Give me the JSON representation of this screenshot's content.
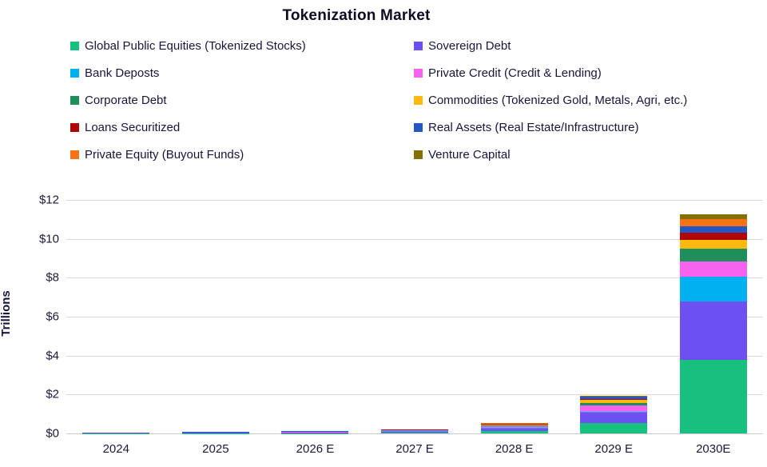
{
  "chart_data": {
    "type": "bar",
    "stacked": true,
    "title": "Tokenization Market",
    "ylabel": "Trillions",
    "grid": true,
    "legend_position": "top",
    "ylim": [
      0,
      12
    ],
    "y_ticks": [
      "$0",
      "$2",
      "$4",
      "$6",
      "$8",
      "$10",
      "$12"
    ],
    "categories": [
      "2024",
      "2025",
      "2026 E",
      "2027 E",
      "2028 E",
      "2029 E",
      "2030E"
    ],
    "series": [
      {
        "name": "Global Public Equities (Tokenized Stocks)",
        "color": "#17c07e",
        "values": [
          0.01,
          0.015,
          0.02,
          0.04,
          0.12,
          0.55,
          3.8
        ]
      },
      {
        "name": "Sovereign Debt",
        "color": "#6e4ff0",
        "values": [
          0.012,
          0.018,
          0.03,
          0.06,
          0.13,
          0.52,
          3.0
        ]
      },
      {
        "name": "Bank Deposts",
        "color": "#00b0f0",
        "values": [
          0.004,
          0.005,
          0.01,
          0.01,
          0.04,
          0.03,
          1.25
        ]
      },
      {
        "name": "Private Credit (Credit & Lending)",
        "color": "#f763ef",
        "values": [
          0.008,
          0.01,
          0.02,
          0.05,
          0.1,
          0.35,
          0.8
        ]
      },
      {
        "name": "Corporate Debt",
        "color": "#1e8e5a",
        "values": [
          0.004,
          0.005,
          0.01,
          0.01,
          0.03,
          0.12,
          0.65
        ]
      },
      {
        "name": "Commodities (Tokenized Gold, Metals, Agri, etc.)",
        "color": "#fdb90d",
        "values": [
          0.004,
          0.005,
          0.01,
          0.012,
          0.04,
          0.17,
          0.45
        ]
      },
      {
        "name": "Loans Securitized",
        "color": "#b00505",
        "values": [
          0.003,
          0.004,
          0.005,
          0.008,
          0.02,
          0.02,
          0.35
        ]
      },
      {
        "name": "Real Assets (Real Estate/Infrastructure)",
        "color": "#2456c4",
        "values": [
          0.003,
          0.004,
          0.005,
          0.008,
          0.02,
          0.12,
          0.35
        ]
      },
      {
        "name": "Private Equity (Buyout Funds)",
        "color": "#f97316",
        "values": [
          0.003,
          0.004,
          0.005,
          0.006,
          0.02,
          0.02,
          0.35
        ]
      },
      {
        "name": "Venture Capital",
        "color": "#857103",
        "values": [
          0.003,
          0.004,
          0.005,
          0.006,
          0.01,
          0.02,
          0.25
        ]
      }
    ]
  }
}
